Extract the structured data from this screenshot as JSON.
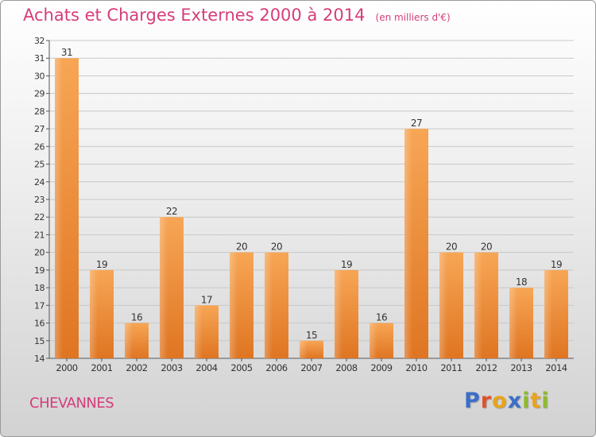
{
  "title": "Achats et Charges Externes 2000 à 2014",
  "subtitle": "(en milliers d'€)",
  "town": "CHEVANNES",
  "logo": {
    "text": "Proxiti",
    "letter_colors": [
      "#3a6fc9",
      "#e0522d",
      "#e9a41b",
      "#3a6fc9",
      "#8dbb2a",
      "#e9a41b",
      "#8dbb2a"
    ]
  },
  "colors": {
    "title": "#d63d7a",
    "bar_light": "#f7a655",
    "bar_dark": "#df7522",
    "grid": "#c8c8c8",
    "axis": "#555555"
  },
  "chart_data": {
    "type": "bar",
    "categories": [
      "2000",
      "2001",
      "2002",
      "2003",
      "2004",
      "2005",
      "2006",
      "2007",
      "2008",
      "2009",
      "2010",
      "2011",
      "2012",
      "2013",
      "2014"
    ],
    "values": [
      31,
      19,
      16,
      22,
      17,
      20,
      20,
      15,
      19,
      16,
      27,
      20,
      20,
      18,
      19
    ],
    "title": "Achats et Charges Externes 2000 à 2014",
    "ylabel": "",
    "xlabel": "",
    "ylim": [
      14,
      32
    ],
    "yticks": [
      14,
      15,
      16,
      17,
      18,
      19,
      20,
      21,
      22,
      23,
      24,
      25,
      26,
      27,
      28,
      29,
      30,
      31,
      32
    ],
    "grid": true,
    "data_labels": true
  }
}
